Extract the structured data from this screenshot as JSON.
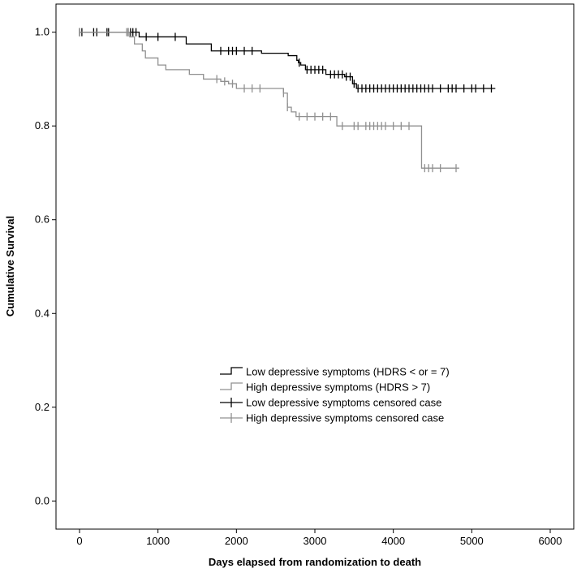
{
  "chart_data": {
    "type": "line",
    "subtype": "kaplan-meier survival curve",
    "xlabel": "Days elapsed from randomization to death",
    "ylabel": "Cumulative Survival",
    "xlim": [
      -300,
      6300
    ],
    "ylim": [
      -0.06,
      1.06
    ],
    "x_ticks": [
      0,
      1000,
      2000,
      3000,
      4000,
      5000,
      6000
    ],
    "y_ticks": [
      0.0,
      0.2,
      0.4,
      0.6,
      0.8,
      1.0
    ],
    "y_tick_labels": [
      "0.0",
      "0.2",
      "0.4",
      "0.6",
      "0.8",
      "1.0"
    ],
    "grid": false,
    "legend_position": "lower-right (inside plot)",
    "legend": [
      {
        "label": "Low depressive symptoms (HDRS < or = 7)",
        "kind": "step-line",
        "color": "#000000"
      },
      {
        "label": "High depressive symptoms (HDRS > 7)",
        "kind": "step-line",
        "color": "#909090"
      },
      {
        "label": "Low depressive symptoms censored case",
        "kind": "censor-mark",
        "color": "#000000"
      },
      {
        "label": "High depressive symptoms censored case",
        "kind": "censor-mark",
        "color": "#909090"
      }
    ],
    "series": [
      {
        "name": "Low depressive symptoms (HDRS < or = 7)",
        "color": "#000000",
        "steps": [
          [
            0,
            1.0
          ],
          [
            760,
            0.99
          ],
          [
            1360,
            0.975
          ],
          [
            1680,
            0.96
          ],
          [
            2320,
            0.955
          ],
          [
            2660,
            0.95
          ],
          [
            2770,
            0.94
          ],
          [
            2790,
            0.935
          ],
          [
            2820,
            0.93
          ],
          [
            2880,
            0.92
          ],
          [
            3140,
            0.91
          ],
          [
            3380,
            0.905
          ],
          [
            3480,
            0.89
          ],
          [
            3530,
            0.88
          ]
        ],
        "end_x": 5300,
        "censored_x": [
          0,
          30,
          180,
          220,
          350,
          370,
          620,
          650,
          680,
          720,
          850,
          1000,
          1220,
          1800,
          1900,
          1950,
          2000,
          2100,
          2200,
          2800,
          2900,
          2950,
          3000,
          3050,
          3100,
          3200,
          3250,
          3300,
          3350,
          3400,
          3450,
          3500,
          3550,
          3600,
          3650,
          3700,
          3750,
          3800,
          3850,
          3900,
          3950,
          4000,
          4050,
          4100,
          4150,
          4200,
          4250,
          4300,
          4350,
          4400,
          4450,
          4500,
          4600,
          4700,
          4750,
          4800,
          4900,
          5000,
          5050,
          5150,
          5250
        ]
      },
      {
        "name": "High depressive symptoms (HDRS > 7)",
        "color": "#909090",
        "steps": [
          [
            0,
            1.0
          ],
          [
            640,
            0.99
          ],
          [
            700,
            0.975
          ],
          [
            800,
            0.96
          ],
          [
            840,
            0.945
          ],
          [
            1000,
            0.93
          ],
          [
            1100,
            0.92
          ],
          [
            1400,
            0.91
          ],
          [
            1580,
            0.9
          ],
          [
            1800,
            0.895
          ],
          [
            1900,
            0.89
          ],
          [
            2000,
            0.88
          ],
          [
            2600,
            0.87
          ],
          [
            2650,
            0.84
          ],
          [
            2700,
            0.83
          ],
          [
            2760,
            0.82
          ],
          [
            3280,
            0.8
          ],
          [
            4360,
            0.71
          ]
        ],
        "end_x": 4840,
        "censored_x": [
          0,
          600,
          620,
          1750,
          1850,
          1950,
          2100,
          2200,
          2300,
          2600,
          2650,
          2800,
          2900,
          3000,
          3100,
          3200,
          3350,
          3500,
          3550,
          3650,
          3700,
          3750,
          3800,
          3850,
          3900,
          4000,
          4100,
          4200,
          4400,
          4450,
          4500,
          4600,
          4800
        ]
      }
    ]
  }
}
